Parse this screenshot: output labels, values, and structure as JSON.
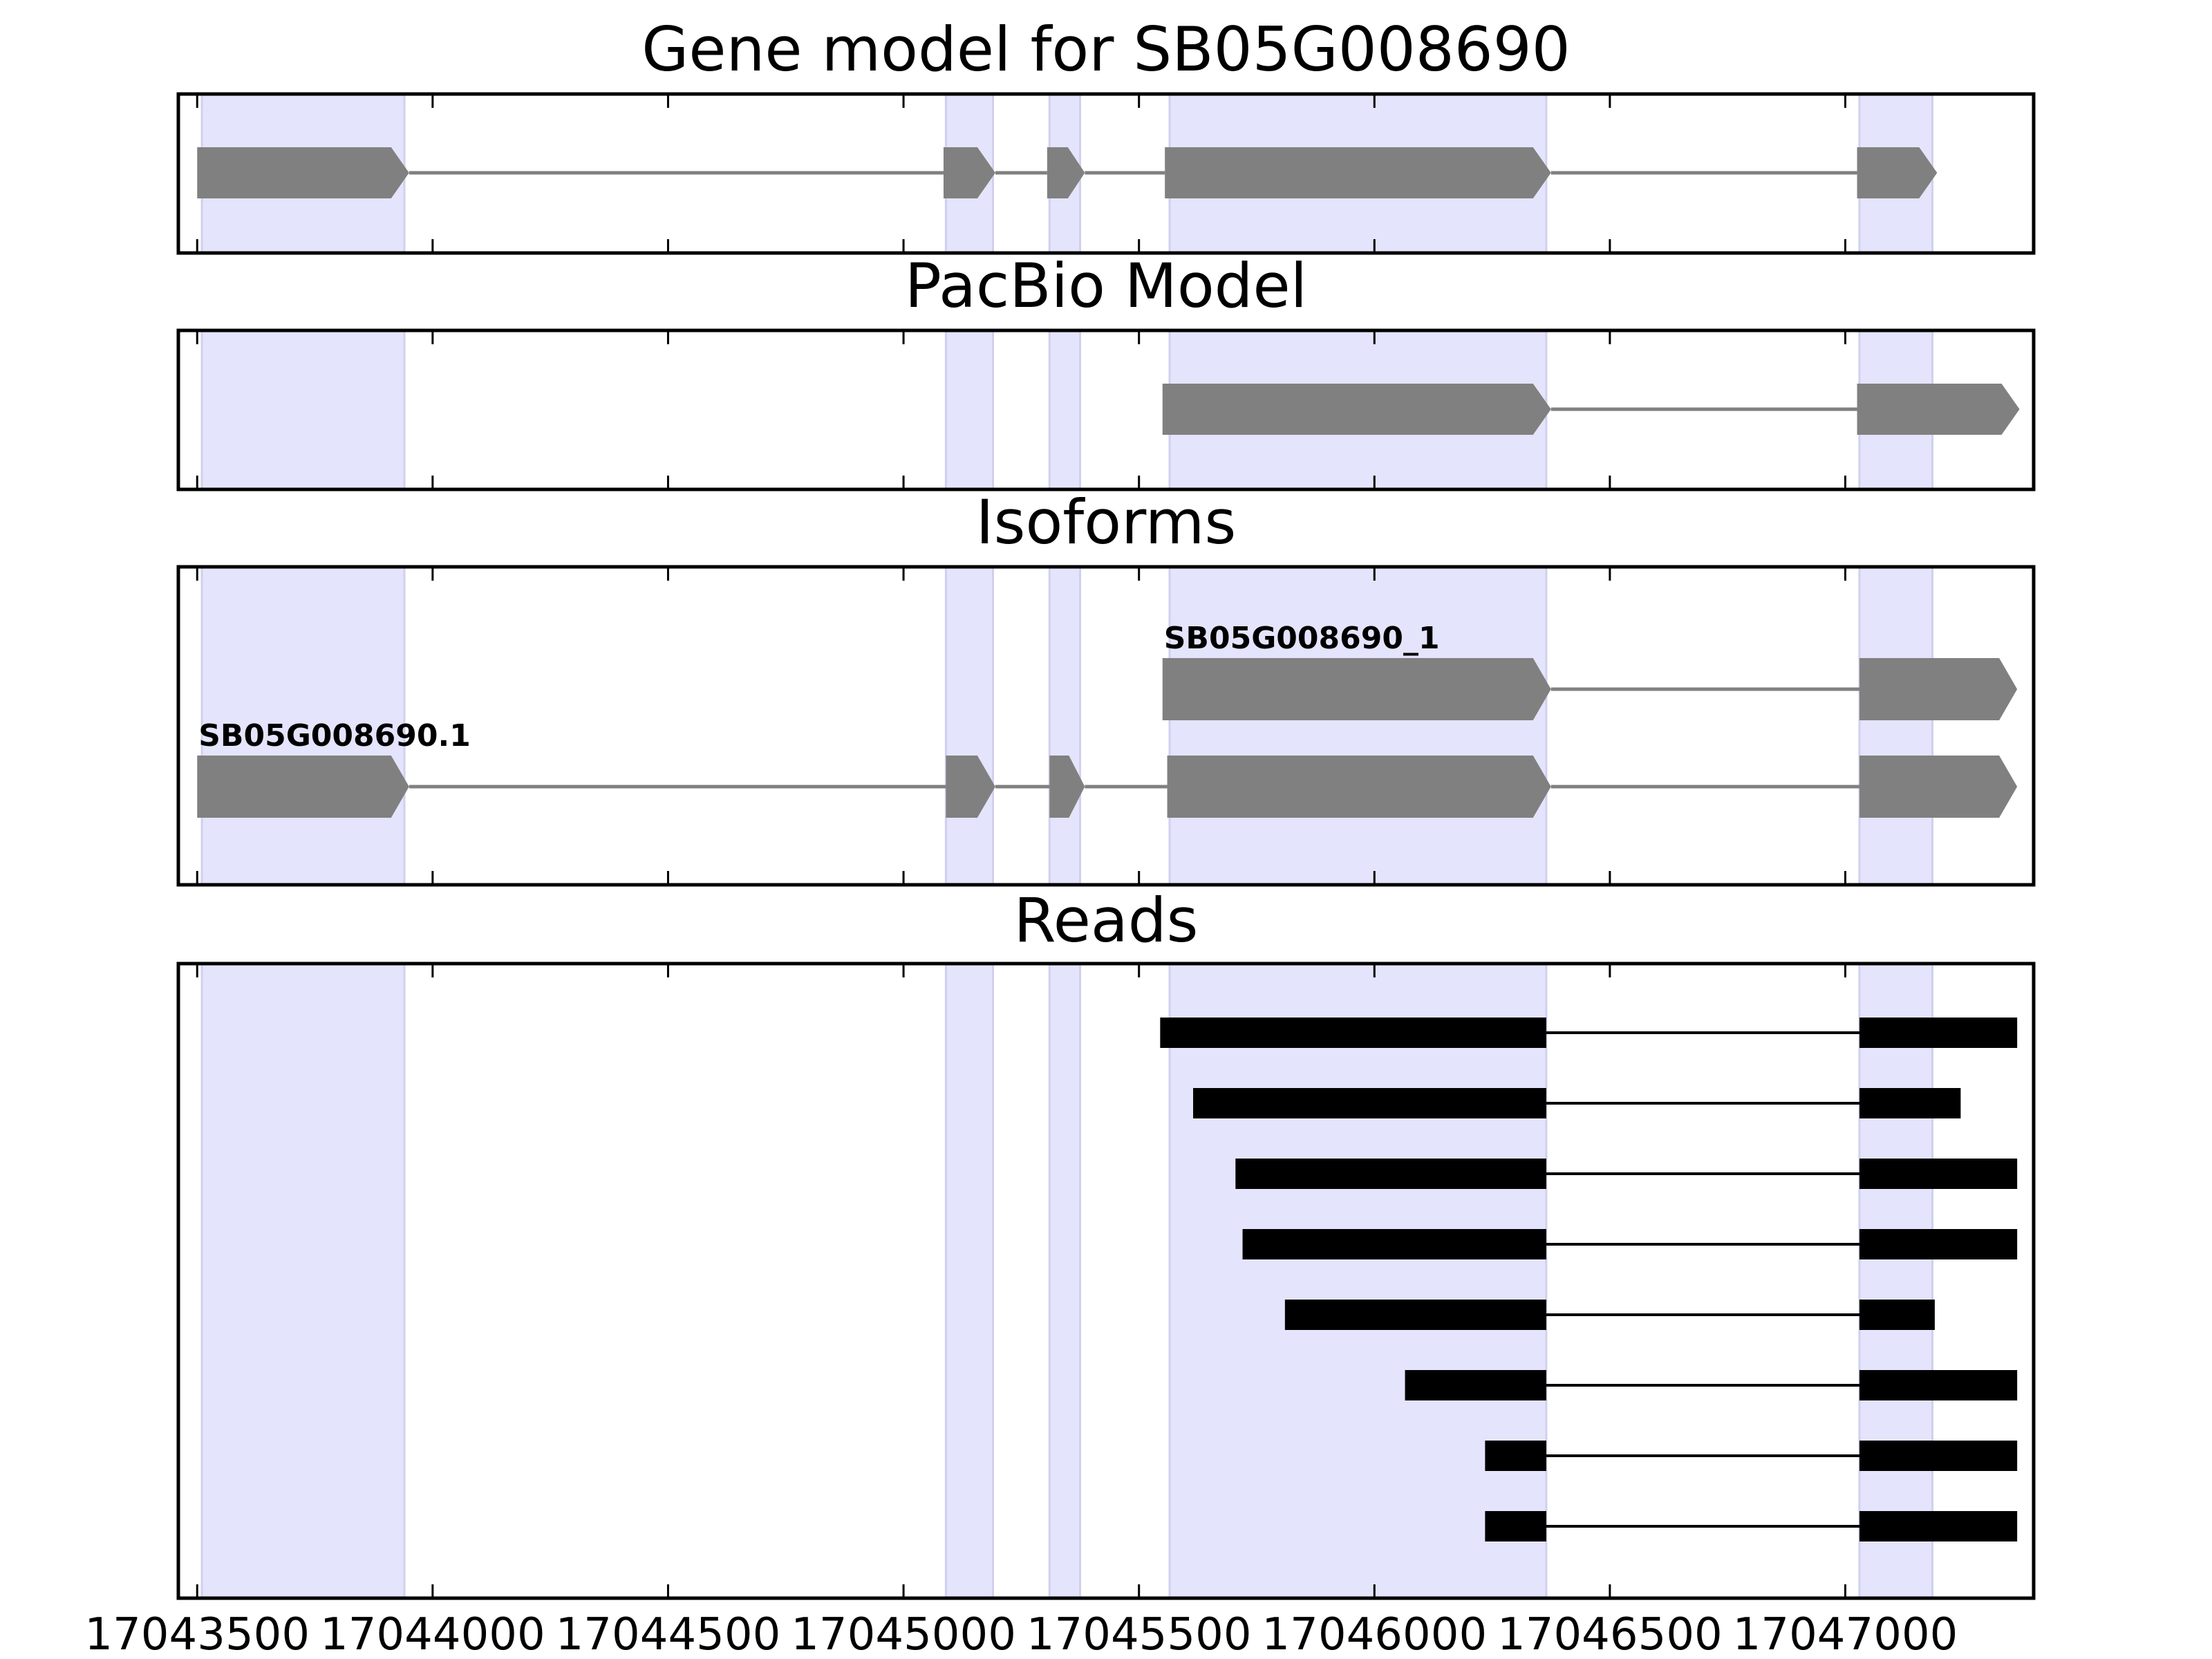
{
  "chart_data": {
    "type": "gene_structure",
    "x_range": [
      17043460,
      17047400
    ],
    "x_ticks": [
      17043500,
      17044000,
      17044500,
      17045000,
      17045500,
      17046000,
      17046500,
      17047000
    ],
    "tick_labels": [
      "17043500",
      "17044000",
      "17044500",
      "17045000",
      "17045500",
      "17046000",
      "17046500",
      "17047000"
    ],
    "highlight_color": "#e4e4fc",
    "model_color": "#808080",
    "read_color": "#000000",
    "highlight_regions": [
      [
        17043510,
        17043940
      ],
      [
        17045090,
        17045190
      ],
      [
        17045310,
        17045375
      ],
      [
        17045565,
        17046365
      ],
      [
        17047030,
        17047185
      ]
    ],
    "panels": [
      {
        "id": "gene-model",
        "title": "Gene model for SB05G008690",
        "rows": [
          {
            "label": "",
            "exons": [
              [
                17043500,
                17043950
              ],
              [
                17045085,
                17045195
              ],
              [
                17045305,
                17045385
              ],
              [
                17045555,
                17046375
              ],
              [
                17047025,
                17047195
              ]
            ]
          }
        ]
      },
      {
        "id": "pacbio-model",
        "title": "PacBio Model",
        "rows": [
          {
            "label": "",
            "exons": [
              [
                17045550,
                17046375
              ],
              [
                17047025,
                17047370
              ]
            ]
          }
        ]
      },
      {
        "id": "isoforms",
        "title": "Isoforms",
        "rows": [
          {
            "label": "SB05G008690_1",
            "exons": [
              [
                17045550,
                17046375
              ],
              [
                17047030,
                17047365
              ]
            ]
          },
          {
            "label": "SB05G008690.1",
            "exons": [
              [
                17043500,
                17043950
              ],
              [
                17045090,
                17045195
              ],
              [
                17045310,
                17045385
              ],
              [
                17045560,
                17046375
              ],
              [
                17047030,
                17047365
              ]
            ]
          }
        ]
      },
      {
        "id": "reads",
        "title": "Reads",
        "rows": [
          {
            "exons": [
              [
                17045545,
                17046365
              ],
              [
                17047030,
                17047365
              ]
            ]
          },
          {
            "exons": [
              [
                17045615,
                17046365
              ],
              [
                17047030,
                17047245
              ]
            ]
          },
          {
            "exons": [
              [
                17045705,
                17046365
              ],
              [
                17047030,
                17047365
              ]
            ]
          },
          {
            "exons": [
              [
                17045720,
                17046365
              ],
              [
                17047030,
                17047365
              ]
            ]
          },
          {
            "exons": [
              [
                17045810,
                17046365
              ],
              [
                17047030,
                17047190
              ]
            ]
          },
          {
            "exons": [
              [
                17046065,
                17046365
              ],
              [
                17047030,
                17047365
              ]
            ]
          },
          {
            "exons": [
              [
                17046235,
                17046365
              ],
              [
                17047030,
                17047365
              ]
            ]
          },
          {
            "exons": [
              [
                17046235,
                17046365
              ],
              [
                17047030,
                17047365
              ]
            ]
          }
        ]
      }
    ]
  }
}
